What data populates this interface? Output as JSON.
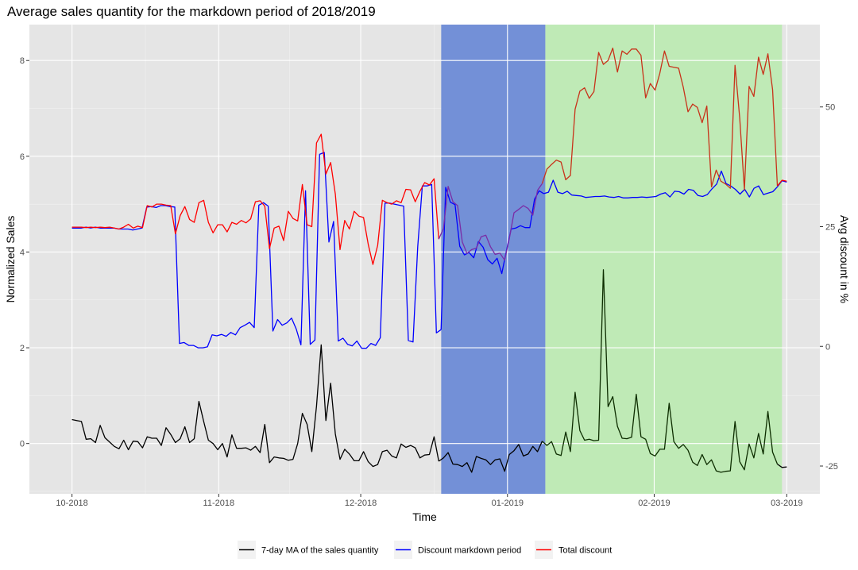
{
  "chart_data": {
    "type": "line",
    "title": "Average sales quantity for the markdown period of 2018/2019",
    "xlabel": "Time",
    "ylabel": "Normalized Sales",
    "y2label": "Avg discount in %",
    "x_start": "2018-10-01",
    "x_end": "2019-03-01",
    "xlim": [
      "2018-09-22",
      "2019-03-08"
    ],
    "ylim": [
      -1.05,
      8.75
    ],
    "y2lim": [
      -30.8,
      67.2
    ],
    "x_ticks": [
      "10-2018",
      "11-2018",
      "12-2018",
      "01-2019",
      "02-2019",
      "03-2019"
    ],
    "x_tick_dates": [
      "2018-10-01",
      "2018-11-01",
      "2018-12-01",
      "2019-01-01",
      "2019-02-01",
      "2019-03-01"
    ],
    "y_ticks": [
      0,
      2,
      4,
      6,
      8
    ],
    "y2_ticks": [
      -25,
      0,
      25,
      50
    ],
    "grid": true,
    "legend_position": "bottom",
    "colors": {
      "panel": "#e5e5e5",
      "grid": "#ffffff",
      "ma": "#000000",
      "discount": "#0000ff",
      "total": "#ff0000",
      "band_blue": "#7390d7",
      "band_green": "#bfeab6",
      "ma_in_green": "#0d2d00",
      "total_in_blue": "#7a2da6",
      "total_in_green": "#c8321a"
    },
    "bands": [
      {
        "from": "2018-12-18",
        "to": "2019-01-09",
        "color": "#7390d7"
      },
      {
        "from": "2019-01-09",
        "to": "2019-02-28",
        "color": "#bfeab6"
      }
    ],
    "series": [
      {
        "name": "7-day MA of the sales quantity",
        "color": "#000000",
        "values": [
          0.5,
          0.48,
          0.46,
          0.09,
          0.1,
          0.02,
          0.38,
          0.12,
          0.03,
          -0.06,
          -0.11,
          0.07,
          -0.13,
          0.05,
          0.04,
          -0.09,
          0.14,
          0.11,
          0.11,
          -0.04,
          0.33,
          0.19,
          0.02,
          0.1,
          0.35,
          0.02,
          0.1,
          0.88,
          0.46,
          0.07,
          0.0,
          -0.13,
          0.0,
          -0.28,
          0.18,
          -0.1,
          -0.1,
          -0.09,
          -0.14,
          -0.06,
          -0.19,
          0.4,
          -0.4,
          -0.28,
          -0.3,
          -0.31,
          -0.35,
          -0.33,
          0.0,
          0.63,
          0.4,
          -0.17,
          0.78,
          2.06,
          0.48,
          1.26,
          0.2,
          -0.33,
          -0.12,
          -0.22,
          -0.36,
          -0.36,
          -0.17,
          -0.38,
          -0.48,
          -0.44,
          -0.17,
          -0.14,
          -0.26,
          -0.3,
          -0.01,
          -0.08,
          -0.04,
          -0.09,
          -0.3,
          -0.24,
          -0.23,
          0.14,
          -0.37,
          -0.3,
          -0.19,
          -0.43,
          -0.44,
          -0.48,
          -0.4,
          -0.6,
          -0.27,
          -0.31,
          -0.34,
          -0.44,
          -0.34,
          -0.32,
          -0.58,
          -0.23,
          -0.15,
          -0.02,
          -0.26,
          -0.22,
          -0.06,
          -0.17,
          0.05,
          -0.04,
          0.04,
          -0.22,
          -0.25,
          0.24,
          -0.17,
          1.07,
          0.27,
          0.07,
          0.09,
          0.06,
          0.07,
          3.63,
          0.77,
          0.98,
          0.36,
          0.11,
          0.1,
          0.13,
          1.03,
          0.14,
          0.09,
          -0.21,
          -0.26,
          -0.12,
          -0.12,
          0.84,
          0.04,
          -0.1,
          -0.02,
          -0.14,
          -0.39,
          -0.46,
          -0.23,
          -0.44,
          -0.34,
          -0.57,
          -0.6,
          -0.58,
          -0.57,
          0.46,
          -0.38,
          -0.55,
          -0.01,
          -0.3,
          0.21,
          -0.22,
          0.67,
          -0.18,
          -0.43,
          -0.5,
          -0.49
        ]
      },
      {
        "name": "Discount markdown period",
        "color": "#0000ff",
        "values": [
          4.5,
          4.5,
          4.5,
          4.52,
          4.5,
          4.52,
          4.5,
          4.5,
          4.5,
          4.5,
          4.48,
          4.48,
          4.48,
          4.46,
          4.48,
          4.5,
          4.94,
          4.95,
          4.93,
          4.97,
          4.97,
          4.95,
          4.94,
          2.09,
          2.11,
          2.05,
          2.05,
          2.0,
          2.0,
          2.02,
          2.27,
          2.25,
          2.28,
          2.24,
          2.32,
          2.27,
          2.42,
          2.47,
          2.53,
          2.42,
          4.98,
          5.03,
          4.96,
          2.35,
          2.59,
          2.47,
          2.52,
          2.62,
          2.39,
          2.06,
          5.28,
          2.07,
          2.16,
          6.04,
          6.08,
          4.21,
          4.64,
          2.14,
          2.2,
          2.07,
          2.04,
          2.14,
          1.99,
          1.99,
          2.09,
          2.05,
          2.21,
          5.02,
          5.02,
          5.0,
          4.98,
          4.96,
          2.15,
          2.12,
          4.11,
          5.38,
          5.38,
          5.41,
          2.31,
          2.38,
          5.35,
          5.04,
          4.99,
          4.12,
          3.94,
          3.99,
          3.88,
          4.22,
          4.1,
          3.84,
          3.75,
          3.87,
          3.55,
          4.03,
          4.48,
          4.5,
          4.55,
          4.51,
          4.51,
          5.1,
          5.28,
          5.22,
          5.25,
          5.5,
          5.25,
          5.22,
          5.27,
          5.19,
          5.18,
          5.17,
          5.14,
          5.15,
          5.16,
          5.16,
          5.17,
          5.15,
          5.14,
          5.16,
          5.13,
          5.13,
          5.14,
          5.14,
          5.15,
          5.14,
          5.15,
          5.16,
          5.21,
          5.24,
          5.15,
          5.27,
          5.26,
          5.21,
          5.31,
          5.29,
          5.18,
          5.16,
          5.2,
          5.32,
          5.42,
          5.69,
          5.43,
          5.38,
          5.31,
          5.21,
          5.31,
          5.15,
          5.33,
          5.38,
          5.2,
          5.23,
          5.26,
          5.36,
          5.49,
          5.46
        ]
      },
      {
        "name": "Total discount",
        "color": "#ff0000",
        "values": [
          4.52,
          4.52,
          4.52,
          4.51,
          4.52,
          4.51,
          4.52,
          4.51,
          4.52,
          4.5,
          4.48,
          4.52,
          4.58,
          4.5,
          4.54,
          4.51,
          4.97,
          4.94,
          5.0,
          5.0,
          4.98,
          4.97,
          4.38,
          4.76,
          4.95,
          4.68,
          4.62,
          5.03,
          5.08,
          4.62,
          4.4,
          4.57,
          4.57,
          4.42,
          4.62,
          4.58,
          4.66,
          4.61,
          4.69,
          5.05,
          5.07,
          4.96,
          4.07,
          4.5,
          4.54,
          4.24,
          4.85,
          4.7,
          4.65,
          5.41,
          4.57,
          4.53,
          6.28,
          6.46,
          5.63,
          5.87,
          5.21,
          4.05,
          4.66,
          4.48,
          4.85,
          4.75,
          4.72,
          4.16,
          3.74,
          4.14,
          5.08,
          5.03,
          5.0,
          5.07,
          5.03,
          5.31,
          5.3,
          5.05,
          5.27,
          5.45,
          5.4,
          5.53,
          4.27,
          4.49,
          5.37,
          5.05,
          4.97,
          4.21,
          3.97,
          4.05,
          4.08,
          4.32,
          4.35,
          4.11,
          3.95,
          3.98,
          3.83,
          4.28,
          4.82,
          4.89,
          4.97,
          4.91,
          4.77,
          5.29,
          5.43,
          5.73,
          5.83,
          5.92,
          5.88,
          5.51,
          5.6,
          6.98,
          7.36,
          7.43,
          7.21,
          7.35,
          8.17,
          7.92,
          8.0,
          8.26,
          7.76,
          8.2,
          8.13,
          8.24,
          8.24,
          8.11,
          7.22,
          7.52,
          7.38,
          7.73,
          8.2,
          7.88,
          7.86,
          7.84,
          7.44,
          6.93,
          7.09,
          7.02,
          6.7,
          7.05,
          5.36,
          5.71,
          5.48,
          5.42,
          5.33,
          7.9,
          6.8,
          5.3,
          7.46,
          7.25,
          8.07,
          7.71,
          8.14,
          7.39,
          5.38,
          5.5,
          5.48
        ]
      }
    ]
  }
}
